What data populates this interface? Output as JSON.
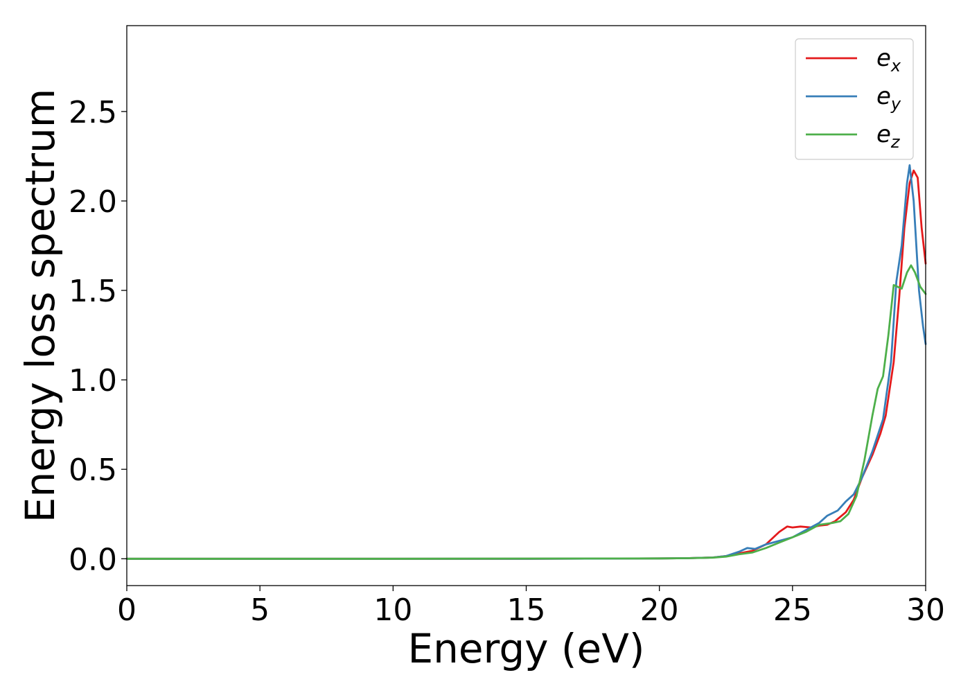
{
  "chart_data": {
    "type": "line",
    "title": "",
    "xlabel": "Energy (eV)",
    "ylabel": "Energy loss spectrum",
    "xlim": [
      0,
      30
    ],
    "ylim": [
      -0.15,
      2.98
    ],
    "xticks": [
      0,
      5,
      10,
      15,
      20,
      25,
      30
    ],
    "yticks": [
      0.0,
      0.5,
      1.0,
      1.5,
      2.0,
      2.5
    ],
    "xtick_labels": [
      "0",
      "5",
      "10",
      "15",
      "20",
      "25",
      "30"
    ],
    "ytick_labels": [
      "0.0",
      "0.5",
      "1.0",
      "1.5",
      "2.0",
      "2.5"
    ],
    "grid": false,
    "legend_position": "top-right",
    "series": [
      {
        "name": "e_x",
        "legend_base": "e",
        "legend_sub": "x",
        "color": "#e41a1c",
        "points": [
          [
            0,
            0
          ],
          [
            5,
            0
          ],
          [
            10,
            0
          ],
          [
            15,
            0
          ],
          [
            20,
            0.002
          ],
          [
            21,
            0.003
          ],
          [
            22,
            0.007
          ],
          [
            22.5,
            0.015
          ],
          [
            23,
            0.03
          ],
          [
            23.5,
            0.045
          ],
          [
            24,
            0.08
          ],
          [
            24.5,
            0.15
          ],
          [
            24.8,
            0.18
          ],
          [
            25,
            0.175
          ],
          [
            25.3,
            0.18
          ],
          [
            25.7,
            0.175
          ],
          [
            26,
            0.185
          ],
          [
            26.3,
            0.19
          ],
          [
            26.6,
            0.21
          ],
          [
            27,
            0.26
          ],
          [
            27.3,
            0.33
          ],
          [
            27.6,
            0.45
          ],
          [
            28,
            0.58
          ],
          [
            28.3,
            0.7
          ],
          [
            28.5,
            0.8
          ],
          [
            28.8,
            1.1
          ],
          [
            29,
            1.45
          ],
          [
            29.2,
            1.85
          ],
          [
            29.4,
            2.1
          ],
          [
            29.55,
            2.17
          ],
          [
            29.7,
            2.13
          ],
          [
            29.85,
            1.85
          ],
          [
            30,
            1.65
          ]
        ]
      },
      {
        "name": "e_y",
        "legend_base": "e",
        "legend_sub": "y",
        "color": "#377eb8",
        "points": [
          [
            0,
            0
          ],
          [
            5,
            0
          ],
          [
            10,
            0
          ],
          [
            15,
            0
          ],
          [
            20,
            0.002
          ],
          [
            21,
            0.003
          ],
          [
            22,
            0.007
          ],
          [
            22.5,
            0.015
          ],
          [
            23,
            0.04
          ],
          [
            23.3,
            0.06
          ],
          [
            23.6,
            0.055
          ],
          [
            24,
            0.08
          ],
          [
            24.5,
            0.1
          ],
          [
            25,
            0.12
          ],
          [
            25.5,
            0.16
          ],
          [
            26,
            0.2
          ],
          [
            26.3,
            0.24
          ],
          [
            26.7,
            0.27
          ],
          [
            27,
            0.32
          ],
          [
            27.3,
            0.36
          ],
          [
            27.6,
            0.45
          ],
          [
            28,
            0.6
          ],
          [
            28.4,
            0.78
          ],
          [
            28.7,
            1.1
          ],
          [
            28.9,
            1.55
          ],
          [
            29.1,
            1.75
          ],
          [
            29.3,
            2.1
          ],
          [
            29.4,
            2.2
          ],
          [
            29.55,
            2.0
          ],
          [
            29.75,
            1.5
          ],
          [
            29.9,
            1.3
          ],
          [
            30,
            1.2
          ]
        ]
      },
      {
        "name": "e_z",
        "legend_base": "e",
        "legend_sub": "z",
        "color": "#4daf4a",
        "points": [
          [
            0,
            0
          ],
          [
            5,
            0
          ],
          [
            10,
            0
          ],
          [
            15,
            0.001
          ],
          [
            20,
            0.002
          ],
          [
            21,
            0.003
          ],
          [
            22,
            0.006
          ],
          [
            22.5,
            0.012
          ],
          [
            23,
            0.025
          ],
          [
            23.5,
            0.035
          ],
          [
            24,
            0.06
          ],
          [
            24.5,
            0.09
          ],
          [
            25,
            0.12
          ],
          [
            25.5,
            0.15
          ],
          [
            26,
            0.19
          ],
          [
            26.5,
            0.2
          ],
          [
            26.8,
            0.21
          ],
          [
            27.1,
            0.25
          ],
          [
            27.4,
            0.35
          ],
          [
            27.7,
            0.55
          ],
          [
            28,
            0.8
          ],
          [
            28.2,
            0.95
          ],
          [
            28.4,
            1.02
          ],
          [
            28.6,
            1.25
          ],
          [
            28.8,
            1.53
          ],
          [
            29.1,
            1.51
          ],
          [
            29.3,
            1.6
          ],
          [
            29.45,
            1.64
          ],
          [
            29.6,
            1.6
          ],
          [
            29.8,
            1.52
          ],
          [
            30,
            1.48
          ]
        ]
      }
    ]
  }
}
